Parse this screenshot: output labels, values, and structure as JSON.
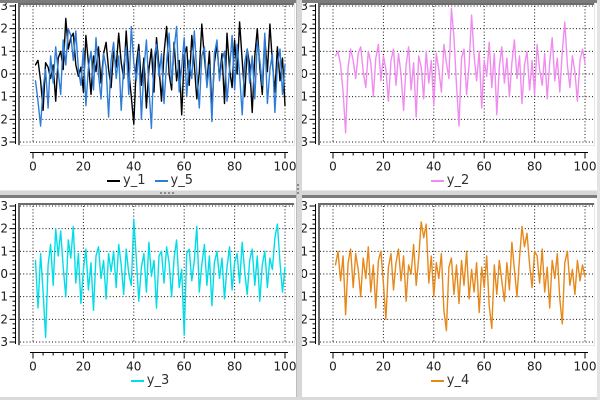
{
  "meta": {
    "background": "#ffffff",
    "grid_color": "#111111",
    "frame_border_color": "#6b6b6b",
    "tick_label_color": "#1a1a1a",
    "legend_text_color": "#303030",
    "splitter_color": "#d7d7d7",
    "edge_color": "#7c7c7c"
  },
  "chart_data": [
    {
      "type": "line",
      "position": "top-left",
      "x_range": [
        0,
        100
      ],
      "y_range": [
        -3,
        3
      ],
      "x_ticks": [
        0,
        20,
        40,
        60,
        80,
        100
      ],
      "y_ticks": [
        3,
        2,
        1,
        0,
        -1,
        -2,
        -3
      ],
      "grid": true,
      "legend_position": "bottom",
      "series": [
        {
          "name": "y_1",
          "color": "#000000",
          "values": [
            0.4,
            0.6,
            -0.3,
            -1.6,
            0.5,
            0.3,
            -0.2,
            0.4,
            -1.2,
            0.7,
            1.0,
            0.2,
            2.45,
            1.1,
            1.6,
            1.8,
            0.4,
            -0.1,
            0.3,
            -0.8,
            1.7,
            0.5,
            -0.9,
            0.8,
            0.1,
            1.2,
            -0.4,
            0.9,
            1.4,
            0.2,
            -0.6,
            1.0,
            0.3,
            1.8,
            0.5,
            -0.2,
            1.9,
            0.1,
            -1.0,
            -2.2,
            0.4,
            1.3,
            -0.5,
            0.7,
            -1.5,
            0.2,
            1.1,
            -0.8,
            1.6,
            0.3,
            -1.2,
            0.9,
            2.1,
            0.0,
            -0.7,
            1.4,
            -0.3,
            0.6,
            -1.8,
            0.8,
            1.2,
            -0.5,
            1.7,
            0.4,
            -1.1,
            0.1,
            2.2,
            0.7,
            -0.4,
            1.0,
            -1.6,
            0.5,
            1.3,
            -0.2,
            0.9,
            -1.3,
            1.8,
            0.2,
            -0.6,
            1.5,
            0.0,
            2.3,
            0.6,
            -1.0,
            1.1,
            0.4,
            -1.7,
            0.8,
            2.0,
            0.3,
            -0.9,
            1.6,
            0.1,
            2.2,
            0.5,
            -0.8,
            1.2,
            -0.3,
            0.7,
            -1.4
          ]
        },
        {
          "name": "y_5",
          "color": "#2e7dd8",
          "values": [
            -0.3,
            -1.2,
            -2.3,
            -0.6,
            0.2,
            -1.5,
            0.8,
            -0.4,
            1.2,
            0.1,
            -0.9,
            1.5,
            0.4,
            2.0,
            1.7,
            0.6,
            1.9,
            0.2,
            -0.5,
            1.1,
            -1.4,
            0.3,
            1.0,
            -0.7,
            1.6,
            0.0,
            -1.1,
            0.9,
            0.3,
            -1.9,
            0.6,
            1.4,
            -0.2,
            0.8,
            -1.6,
            0.4,
            1.2,
            -0.9,
            2.1,
            0.5,
            -0.3,
            1.0,
            -2.0,
            0.2,
            1.5,
            -0.6,
            -2.4,
            0.7,
            1.3,
            -0.1,
            0.9,
            -1.3,
            0.5,
            1.8,
            -0.4,
            1.1,
            2.1,
            -0.8,
            0.3,
            1.6,
            -1.0,
            0.6,
            -0.2,
            1.9,
            0.1,
            -1.5,
            0.8,
            1.2,
            -0.6,
            0.4,
            -2.1,
            0.9,
            1.5,
            -0.3,
            0.6,
            1.0,
            -1.2,
            0.2,
            1.7,
            -0.7,
            1.3,
            0.0,
            -1.8,
            0.5,
            1.1,
            -0.4,
            0.8,
            -1.1,
            1.4,
            0.6,
            -0.5,
            1.8,
            -1.3,
            0.2,
            0.9,
            -1.7,
            0.4,
            1.1,
            -0.9,
            0.4
          ]
        }
      ]
    },
    {
      "type": "line",
      "position": "top-right",
      "x_range": [
        0,
        100
      ],
      "y_range": [
        -3,
        3
      ],
      "x_ticks": [
        0,
        20,
        40,
        60,
        80,
        100
      ],
      "y_ticks": [
        3,
        2,
        1,
        0,
        -1,
        -2,
        -3
      ],
      "grid": true,
      "legend_position": "bottom",
      "series": [
        {
          "name": "y_2",
          "color": "#f08cf0",
          "values": [
            0.8,
            1.0,
            0.4,
            -0.8,
            -2.6,
            0.3,
            1.1,
            0.6,
            -0.2,
            0.9,
            1.2,
            0.1,
            -0.6,
            1.0,
            0.5,
            -1.0,
            0.7,
            1.3,
            -0.3,
            0.8,
            0.2,
            -1.2,
            0.6,
            1.1,
            -0.5,
            0.9,
            0.0,
            -1.6,
            0.4,
            1.2,
            -0.7,
            0.5,
            -1.9,
            0.8,
            0.3,
            -1.1,
            1.0,
            -0.4,
            0.6,
            -1.4,
            0.9,
            0.2,
            -0.8,
            1.3,
            0.5,
            -0.2,
            2.9,
            1.6,
            -0.5,
            -2.3,
            0.7,
            1.1,
            -0.9,
            0.4,
            2.6,
            0.8,
            -0.3,
            1.0,
            -1.5,
            0.6,
            -0.1,
            1.4,
            -0.6,
            0.9,
            -1.8,
            0.3,
            1.2,
            -0.4,
            0.7,
            -1.0,
            0.5,
            1.5,
            -0.2,
            0.8,
            -1.3,
            0.4,
            1.0,
            -0.7,
            0.6,
            -0.9,
            1.3,
            0.2,
            -0.5,
            0.9,
            -1.1,
            0.5,
            1.6,
            -0.3,
            0.7,
            -0.8,
            1.0,
            2.3,
            0.4,
            -0.6,
            0.8,
            0.1,
            -1.2,
            0.6,
            1.1,
            0.5
          ]
        }
      ]
    },
    {
      "type": "line",
      "position": "bottom-left",
      "x_range": [
        0,
        100
      ],
      "y_range": [
        -3,
        3
      ],
      "x_ticks": [
        0,
        20,
        40,
        60,
        80,
        100
      ],
      "y_ticks": [
        3,
        2,
        1,
        0,
        -1,
        -2,
        -3
      ],
      "grid": true,
      "legend_position": "bottom",
      "series": [
        {
          "name": "y_3",
          "color": "#00dde8",
          "values": [
            0.6,
            -1.5,
            0.9,
            -0.8,
            -2.8,
            0.4,
            1.3,
            -0.5,
            2.0,
            0.8,
            1.9,
            0.3,
            -1.0,
            1.5,
            0.7,
            2.1,
            -0.4,
            0.9,
            -1.3,
            0.2,
            1.1,
            -0.7,
            0.5,
            -1.6,
            0.8,
            1.2,
            -0.2,
            0.6,
            -1.1,
            0.9,
            0.1,
            1.0,
            -0.6,
            1.3,
            0.4,
            -0.9,
            1.1,
            0.0,
            -0.5,
            2.4,
            0.7,
            -1.2,
            0.3,
            0.9,
            -0.8,
            1.4,
            -0.1,
            0.6,
            -1.5,
            0.8,
            1.0,
            -0.4,
            1.2,
            0.5,
            -1.0,
            0.7,
            1.5,
            -0.6,
            0.2,
            -2.7,
            0.9,
            1.1,
            -0.3,
            0.6,
            2.1,
            -0.8,
            0.4,
            1.3,
            -0.5,
            0.8,
            -1.4,
            0.5,
            1.0,
            -0.2,
            0.7,
            -1.1,
            0.3,
            1.2,
            -0.7,
            0.5,
            0.9,
            -0.4,
            1.4,
            0.1,
            -0.9,
            0.6,
            1.1,
            -0.5,
            0.8,
            -1.2,
            0.4,
            1.0,
            -0.6,
            0.7,
            0.2,
            1.6,
            2.2,
            0.5,
            -0.8,
            0.3
          ]
        }
      ]
    },
    {
      "type": "line",
      "position": "bottom-right",
      "x_range": [
        0,
        100
      ],
      "y_range": [
        -3,
        3
      ],
      "x_ticks": [
        0,
        20,
        40,
        60,
        80,
        100
      ],
      "y_ticks": [
        3,
        2,
        1,
        0,
        -1,
        -2,
        -3
      ],
      "grid": true,
      "legend_position": "bottom",
      "series": [
        {
          "name": "y_4",
          "color": "#e6881a",
          "values": [
            0.4,
            1.0,
            -0.3,
            0.8,
            -1.8,
            0.5,
            1.1,
            -0.6,
            0.9,
            0.2,
            -1.0,
            0.7,
            -0.2,
            1.2,
            -0.8,
            0.4,
            -1.5,
            0.6,
            1.0,
            -0.4,
            -2.0,
            0.3,
            0.9,
            -0.7,
            0.5,
            1.1,
            -0.3,
            0.8,
            -1.2,
            0.4,
            0.0,
            1.3,
            -0.5,
            0.7,
            2.3,
            1.6,
            2.2,
            -0.4,
            0.8,
            -1.0,
            0.5,
            -0.2,
            0.9,
            -1.6,
            -2.5,
            0.3,
            0.7,
            -0.9,
            0.4,
            -1.3,
            0.6,
            -0.5,
            1.0,
            -1.1,
            0.2,
            -0.8,
            0.5,
            -1.7,
            0.3,
            -0.6,
            0.8,
            -1.4,
            -2.4,
            0.4,
            -0.9,
            0.6,
            -0.3,
            -1.2,
            0.5,
            -0.7,
            1.4,
            0.2,
            -1.0,
            0.7,
            2.1,
            1.2,
            1.8,
            0.4,
            -0.6,
            1.0,
            0.8,
            -0.4,
            1.1,
            -0.8,
            0.3,
            -1.5,
            0.6,
            -0.2,
            0.9,
            -1.1,
            -2.2,
            0.5,
            1.0,
            -0.5,
            0.2,
            -0.9,
            0.6,
            -0.3,
            0.4,
            -0.1
          ]
        }
      ]
    }
  ]
}
